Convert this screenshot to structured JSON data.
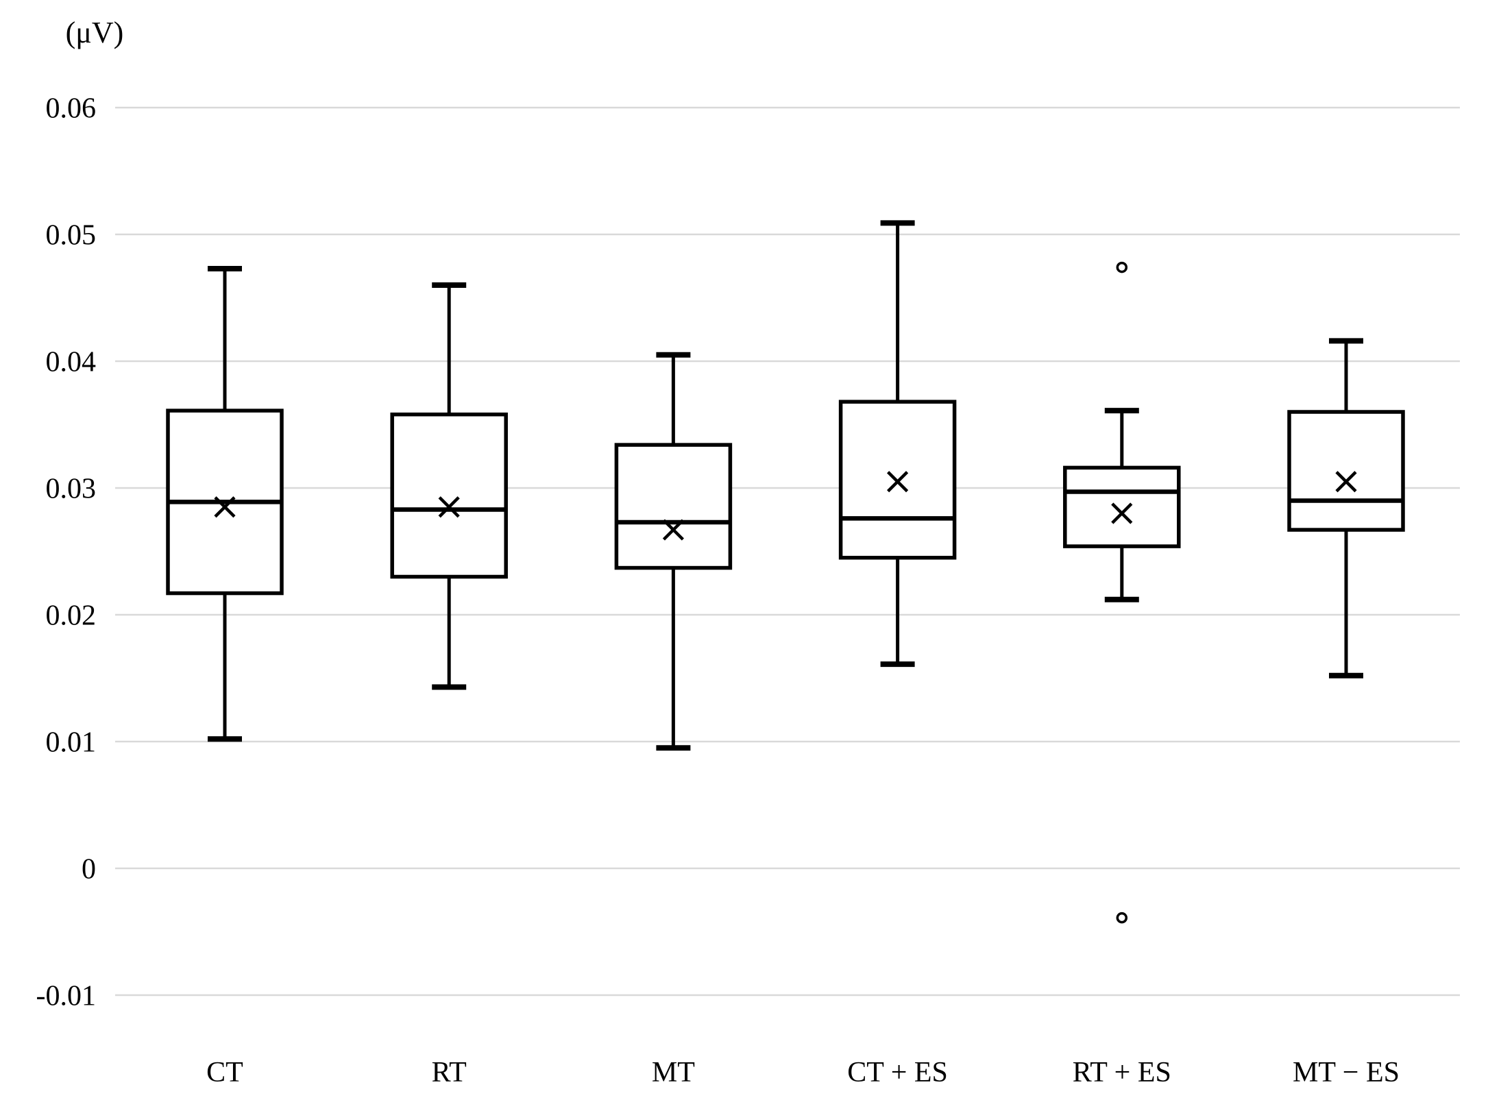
{
  "chart_data": {
    "type": "boxplot",
    "title": "",
    "unit_label": "(μV)",
    "categories": [
      "CT",
      "RT",
      "MT",
      "CT + ES",
      "RT + ES",
      "MT − ES"
    ],
    "series": [
      {
        "name": "CT",
        "whisker_low": 0.0102,
        "q1": 0.0217,
        "median": 0.0289,
        "mean": 0.0285,
        "q3": 0.0361,
        "whisker_high": 0.0473,
        "outliers": []
      },
      {
        "name": "RT",
        "whisker_low": 0.0143,
        "q1": 0.023,
        "median": 0.0283,
        "mean": 0.0285,
        "q3": 0.0358,
        "whisker_high": 0.046,
        "outliers": []
      },
      {
        "name": "MT",
        "whisker_low": 0.0095,
        "q1": 0.0237,
        "median": 0.0273,
        "mean": 0.0267,
        "q3": 0.0334,
        "whisker_high": 0.0405,
        "outliers": []
      },
      {
        "name": "CT + ES",
        "whisker_low": 0.0161,
        "q1": 0.0245,
        "median": 0.0276,
        "mean": 0.0305,
        "q3": 0.0368,
        "whisker_high": 0.0509,
        "outliers": []
      },
      {
        "name": "RT + ES",
        "whisker_low": 0.0212,
        "q1": 0.0254,
        "median": 0.0297,
        "mean": 0.028,
        "q3": 0.0316,
        "whisker_high": 0.0361,
        "outliers": [
          0.0474,
          -0.0039
        ]
      },
      {
        "name": "MT − ES",
        "whisker_low": 0.0152,
        "q1": 0.0267,
        "median": 0.029,
        "mean": 0.0305,
        "q3": 0.036,
        "whisker_high": 0.0416,
        "outliers": []
      }
    ],
    "y_axis": {
      "tick_labels": [
        "0.06",
        "0.05",
        "0.04",
        "0.03",
        "0.02",
        "0.01",
        "0",
        "-0.01"
      ],
      "tick_values": [
        0.06,
        0.05,
        0.04,
        0.03,
        0.02,
        0.01,
        0,
        -0.01
      ],
      "min": -0.01,
      "max": 0.06
    },
    "legend": "none",
    "grid": "horizontal",
    "mean_marker": "x",
    "outlier_marker": "open-circle",
    "colors": {
      "box_stroke": "#000000",
      "box_fill": "#ffffff",
      "grid": "#d9d9d9",
      "background": "#ffffff",
      "text": "#000000"
    }
  }
}
